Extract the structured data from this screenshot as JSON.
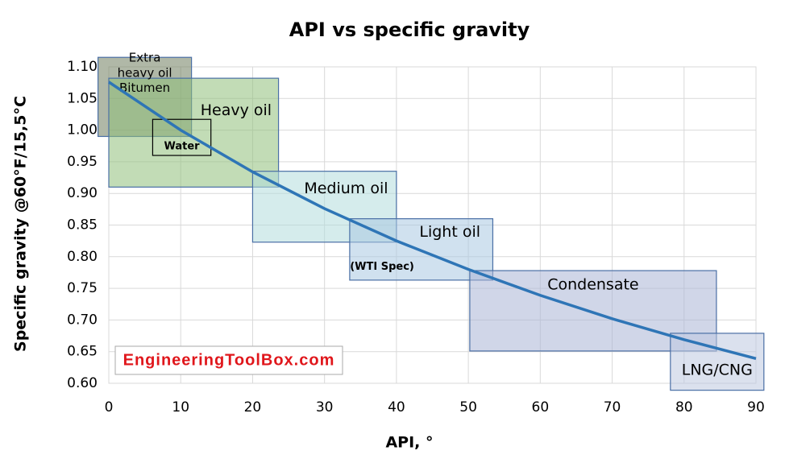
{
  "chart_data": {
    "type": "line",
    "title": "API vs specific gravity",
    "xlabel": "API, °",
    "ylabel": "Specific gravity @60°F/15,5°C",
    "x": [
      0,
      10,
      20,
      30,
      40,
      50,
      60,
      70,
      80,
      90
    ],
    "values": [
      1.076,
      1.0,
      0.934,
      0.876,
      0.825,
      0.78,
      0.739,
      0.702,
      0.669,
      0.639
    ],
    "color": "#2e75b6",
    "xlim": [
      0,
      90
    ],
    "ylim": [
      0.6,
      1.1
    ],
    "xticks": [
      0,
      10,
      20,
      30,
      40,
      50,
      60,
      70,
      80,
      90
    ],
    "yticks": [
      {
        "value": 0.6,
        "label": "0.60"
      },
      0.65,
      {
        "value": 0.7,
        "label": "0.70"
      },
      0.75,
      {
        "value": 0.8,
        "label": "0.80"
      },
      0.85,
      {
        "value": 0.9,
        "label": "0.90"
      },
      0.95,
      {
        "value": 1.0,
        "label": "1.00"
      },
      1.05,
      {
        "value": 1.1,
        "label": "1.10"
      }
    ],
    "grid": true,
    "regions": [
      {
        "label": [
          "Extra",
          "heavy oil",
          "Bitumen"
        ],
        "x": [
          -1.5,
          11.5
        ],
        "y": [
          0.99,
          1.115
        ],
        "color": "#6f7d5e"
      },
      {
        "label": [
          "Heavy oil"
        ],
        "x": [
          0,
          23.6
        ],
        "y": [
          0.91,
          1.082
        ],
        "color": "#8fc07a"
      },
      {
        "label": [
          "Water"
        ],
        "x": [
          6.1,
          14.2
        ],
        "y": [
          0.96,
          1.017
        ],
        "color": "#ffffff"
      },
      {
        "label": [
          "Medium oil"
        ],
        "x": [
          20,
          40
        ],
        "y": [
          0.823,
          0.935
        ],
        "color": "#b3dcdc"
      },
      {
        "label": [
          "Light oil"
        ],
        "x": [
          33.5,
          53.4
        ],
        "y": [
          0.763,
          0.86
        ],
        "color": "#a9c8e2"
      },
      {
        "label": [
          "Condensate"
        ],
        "x": [
          50.2,
          84.5
        ],
        "y": [
          0.651,
          0.778
        ],
        "color": "#aab5d6"
      },
      {
        "label": [
          "LNG/CNG"
        ],
        "x": [
          78.1,
          91.1
        ],
        "y": [
          0.589,
          0.679
        ],
        "color": "#bec8e0"
      }
    ],
    "annotations": [
      {
        "text": "(WTI Spec)",
        "x": 38,
        "y": 0.784
      }
    ],
    "watermark": "EngineeringToolBox.com"
  }
}
